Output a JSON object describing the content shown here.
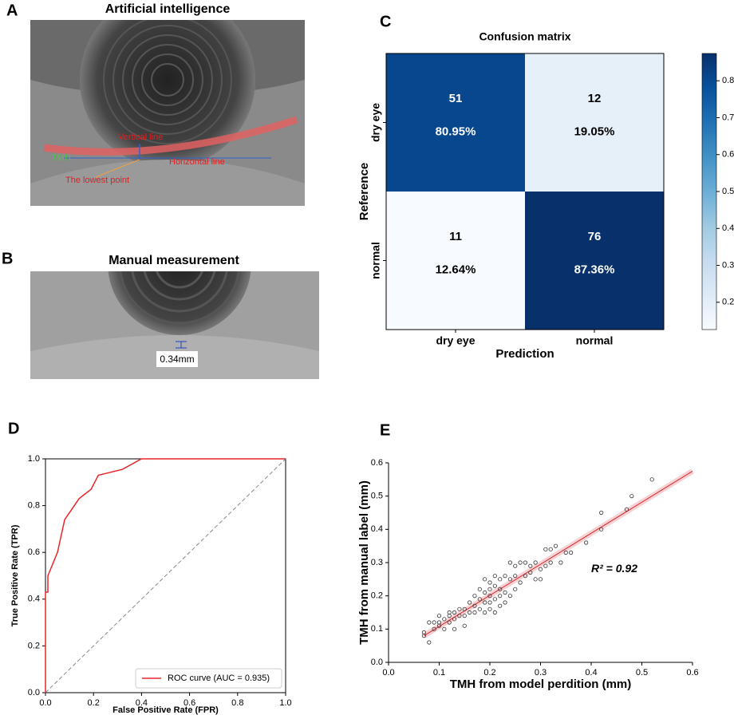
{
  "panel_labels": [
    "A",
    "B",
    "C",
    "D",
    "E"
  ],
  "images": [
    {
      "title": "Artificial intelligence",
      "annotations": [
        "Vertical line",
        "TMH",
        "Horizontal line",
        "The lowest point"
      ]
    },
    {
      "title": "Manual measurement",
      "annotations": [
        "0.34mm"
      ]
    }
  ],
  "chart_data": [
    {
      "type": "heatmap",
      "title": "Confusion matrix",
      "x_label": "Prediction",
      "y_label": "Reference",
      "categories": [
        "dry eye",
        "normal"
      ],
      "rows": [
        "dry eye",
        "normal"
      ],
      "values": [
        [
          51,
          12
        ],
        [
          11,
          76
        ]
      ],
      "shares": [
        [
          0.8095,
          0.1905
        ],
        [
          0.1264,
          0.8736
        ]
      ],
      "share_labels": [
        [
          "80.95%",
          "19.05%"
        ],
        [
          "12.64%",
          "87.36%"
        ]
      ],
      "colormap": "Blues",
      "zlim": [
        0.126,
        0.874
      ],
      "zticks": [
        0.2,
        0.3,
        0.4,
        0.5,
        0.6,
        0.7,
        0.8
      ]
    },
    {
      "type": "line",
      "x_label": "False Positive Rate (FPR)",
      "y_label": "True Positive Rate (TPR)",
      "x": [
        0,
        0,
        0.01,
        0.01,
        0.03,
        0.05,
        0.08,
        0.14,
        0.19,
        0.22,
        0.32,
        0.4,
        1.0
      ],
      "series": [
        {
          "name": "ROC curve (AUC = 0.935)",
          "color": "#e8262a",
          "values": [
            0,
            0.43,
            0.43,
            0.5,
            0.55,
            0.6,
            0.74,
            0.83,
            0.87,
            0.93,
            0.955,
            1.0,
            1.0
          ]
        }
      ],
      "diagonal": {
        "x": [
          0,
          1
        ],
        "values": [
          0,
          1
        ],
        "color": "#888888"
      },
      "xlim": [
        0,
        1
      ],
      "ylim": [
        0,
        1
      ],
      "xticks": [
        {
          "value": 0,
          "label": "0.0"
        },
        0.2,
        0.4,
        0.6,
        0.8,
        {
          "value": 1,
          "label": "1.0"
        }
      ],
      "yticks": [
        {
          "value": 0,
          "label": "0.0"
        },
        0.2,
        0.4,
        0.6,
        0.8,
        {
          "value": 1,
          "label": "1.0"
        }
      ],
      "legend": "lower right"
    },
    {
      "type": "scatter",
      "x_label": "TMH from model perdition (mm)",
      "y_label": "TMH from manual label (mm)",
      "annotation": "R² = 0.92",
      "color": "#333333",
      "x": [
        0.07,
        0.07,
        0.08,
        0.08,
        0.09,
        0.09,
        0.1,
        0.1,
        0.1,
        0.11,
        0.11,
        0.12,
        0.12,
        0.12,
        0.13,
        0.13,
        0.13,
        0.14,
        0.14,
        0.15,
        0.15,
        0.15,
        0.16,
        0.16,
        0.17,
        0.17,
        0.17,
        0.18,
        0.18,
        0.18,
        0.19,
        0.19,
        0.19,
        0.19,
        0.2,
        0.2,
        0.2,
        0.2,
        0.2,
        0.21,
        0.21,
        0.21,
        0.21,
        0.22,
        0.22,
        0.22,
        0.22,
        0.23,
        0.23,
        0.23,
        0.24,
        0.24,
        0.24,
        0.25,
        0.25,
        0.25,
        0.26,
        0.26,
        0.27,
        0.27,
        0.28,
        0.28,
        0.29,
        0.29,
        0.3,
        0.3,
        0.31,
        0.31,
        0.32,
        0.32,
        0.33,
        0.34,
        0.35,
        0.36,
        0.39,
        0.42,
        0.42,
        0.47,
        0.48,
        0.52
      ],
      "values": [
        0.09,
        0.08,
        0.06,
        0.12,
        0.1,
        0.12,
        0.12,
        0.14,
        0.11,
        0.13,
        0.1,
        0.14,
        0.15,
        0.12,
        0.1,
        0.15,
        0.13,
        0.16,
        0.14,
        0.11,
        0.16,
        0.14,
        0.18,
        0.15,
        0.2,
        0.17,
        0.15,
        0.22,
        0.19,
        0.16,
        0.25,
        0.21,
        0.18,
        0.15,
        0.24,
        0.22,
        0.2,
        0.18,
        0.16,
        0.26,
        0.23,
        0.19,
        0.15,
        0.25,
        0.22,
        0.2,
        0.17,
        0.26,
        0.21,
        0.18,
        0.3,
        0.25,
        0.2,
        0.29,
        0.26,
        0.22,
        0.3,
        0.24,
        0.3,
        0.26,
        0.29,
        0.27,
        0.3,
        0.25,
        0.28,
        0.25,
        0.34,
        0.29,
        0.34,
        0.3,
        0.35,
        0.3,
        0.33,
        0.33,
        0.36,
        0.45,
        0.4,
        0.46,
        0.5,
        0.55
      ],
      "fit": {
        "x": [
          0.07,
          0.6
        ],
        "values": [
          0.08,
          0.575
        ],
        "color": "#d62728"
      },
      "xlim": [
        0,
        0.6
      ],
      "ylim": [
        0,
        0.6
      ],
      "xticks": [
        {
          "value": 0,
          "label": "0.0"
        },
        0.1,
        0.2,
        0.3,
        0.4,
        0.5,
        0.6
      ],
      "yticks": [
        {
          "value": 0,
          "label": "0.0"
        },
        0.1,
        0.2,
        0.3,
        0.4,
        0.5,
        0.6
      ]
    }
  ]
}
